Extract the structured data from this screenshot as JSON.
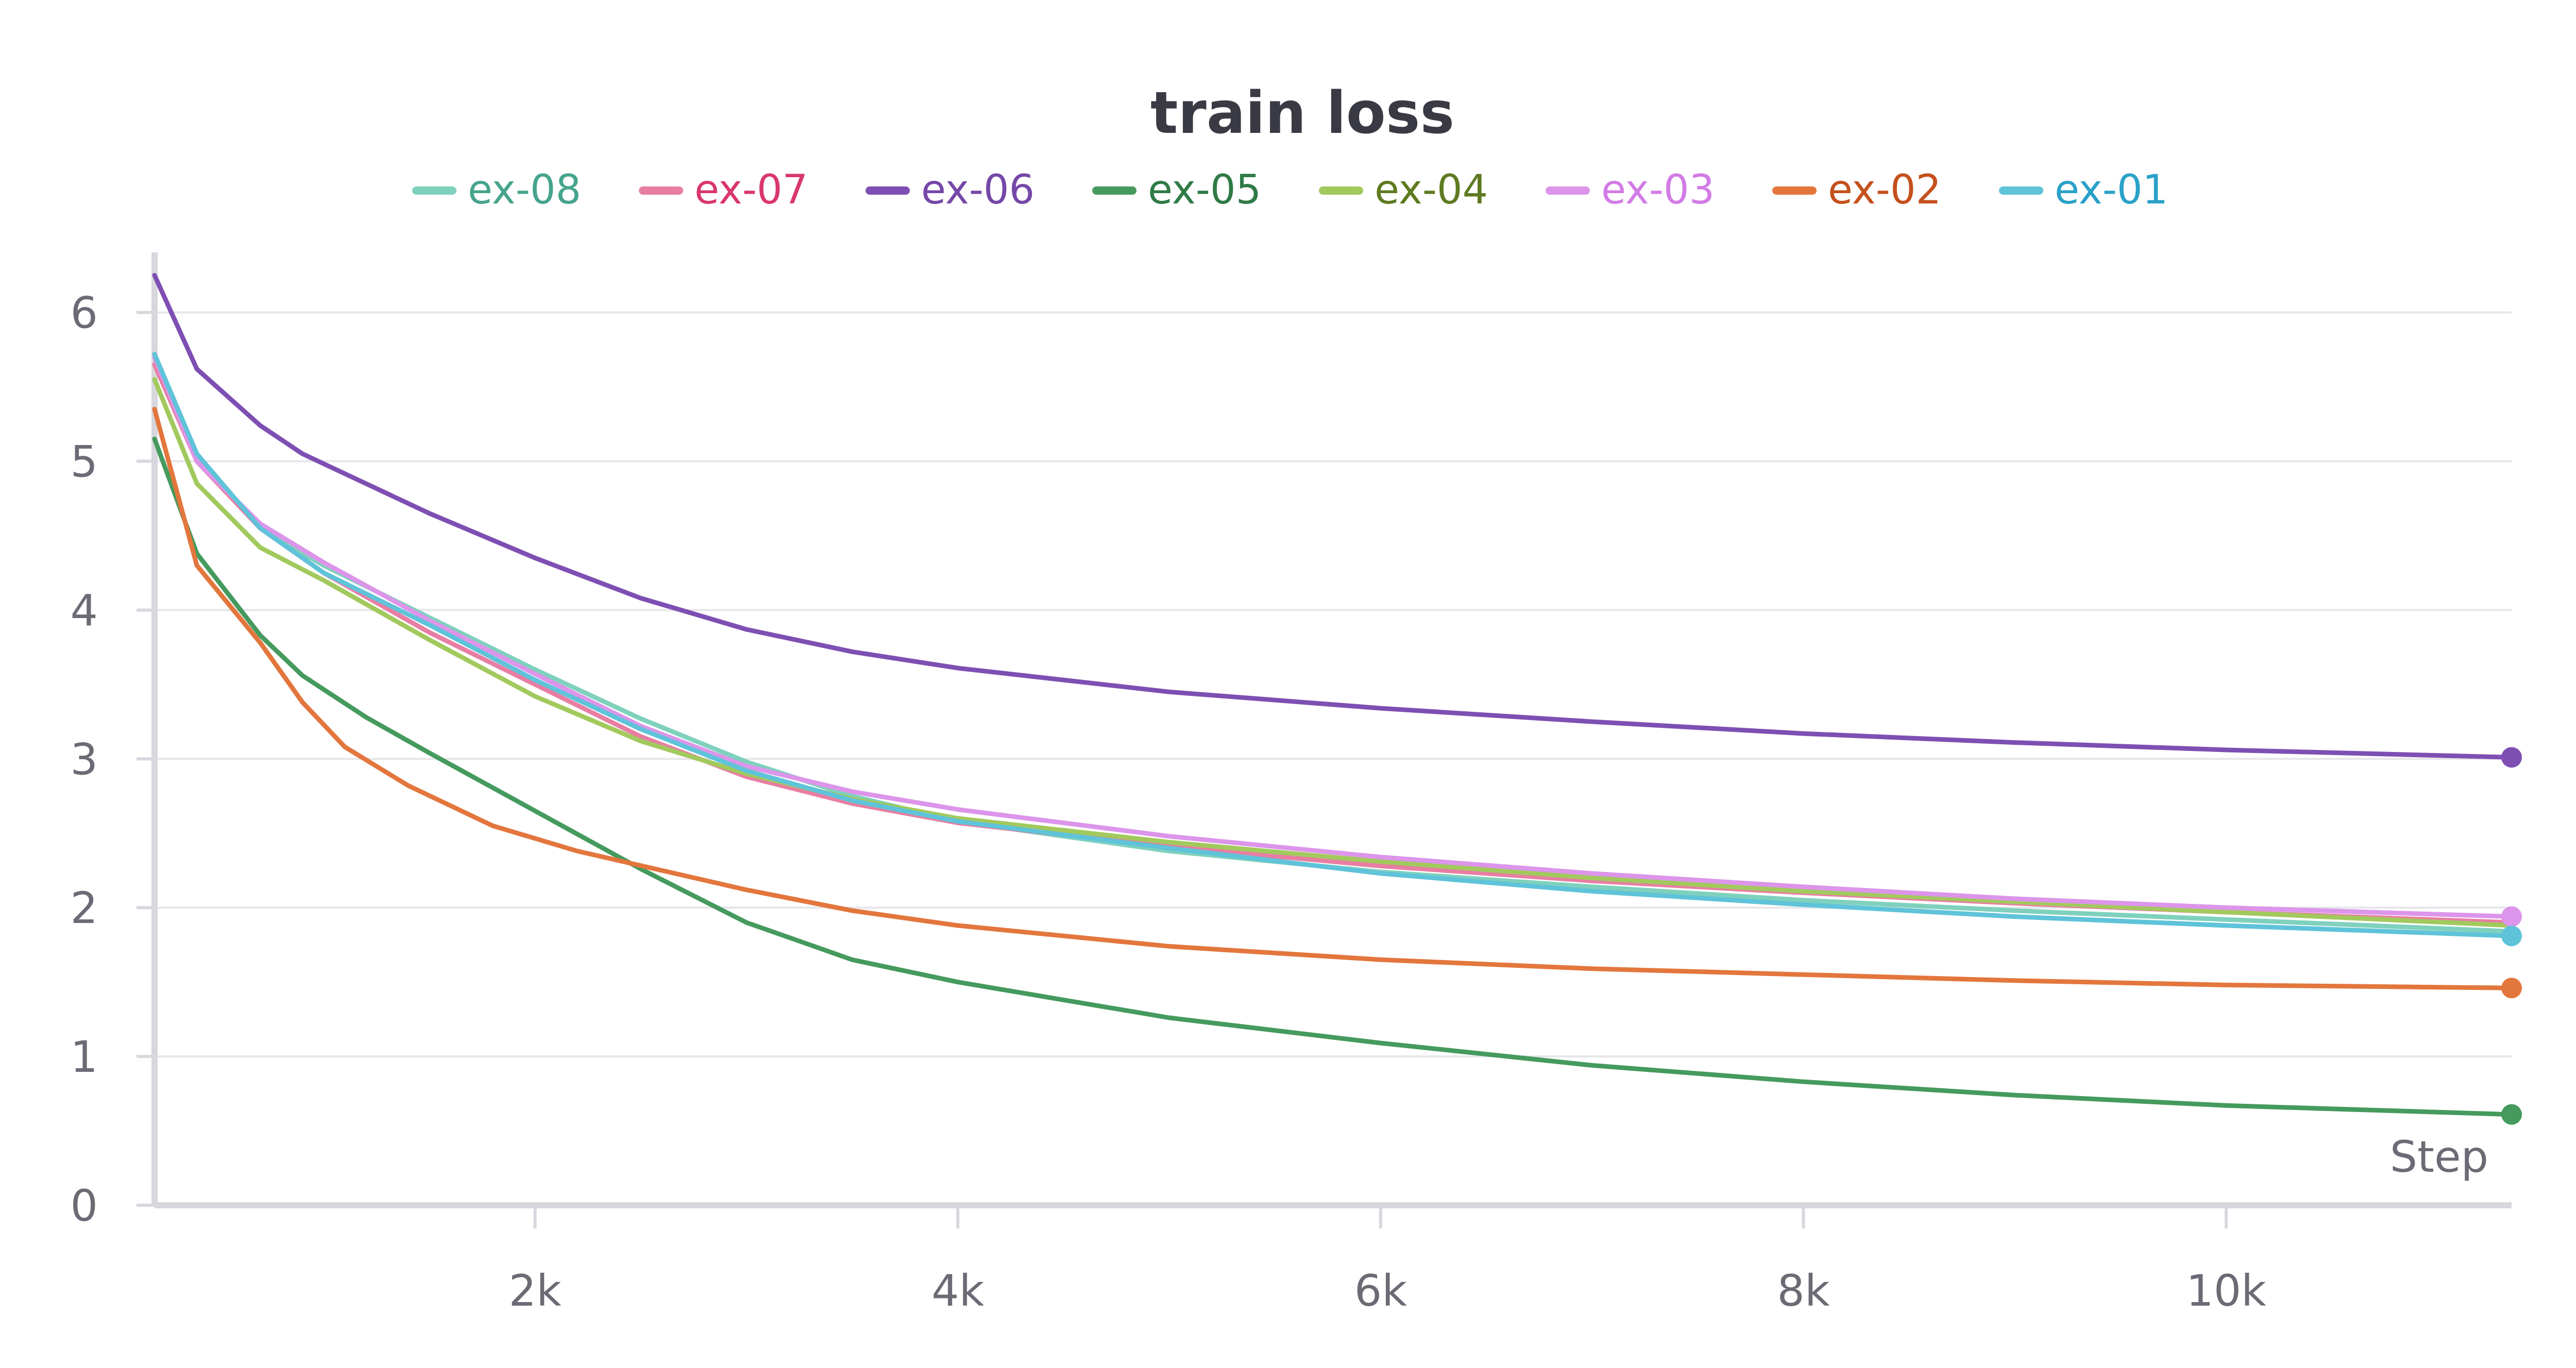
{
  "chart_data": {
    "type": "line",
    "title": "train loss",
    "xlabel": "Step",
    "ylabel": "",
    "xlim": [
      200,
      11350
    ],
    "ylim": [
      0,
      6.3
    ],
    "x_ticks": [
      {
        "value": 2000,
        "label": "2k"
      },
      {
        "value": 4000,
        "label": "4k"
      },
      {
        "value": 6000,
        "label": "6k"
      },
      {
        "value": 8000,
        "label": "8k"
      },
      {
        "value": 10000,
        "label": "10k"
      }
    ],
    "y_ticks": [
      {
        "value": 0,
        "label": "0"
      },
      {
        "value": 1,
        "label": "1"
      },
      {
        "value": 2,
        "label": "2"
      },
      {
        "value": 3,
        "label": "3"
      },
      {
        "value": 4,
        "label": "4"
      },
      {
        "value": 5,
        "label": "5"
      },
      {
        "value": 6,
        "label": "6"
      }
    ],
    "grid": true,
    "legend_position": "top",
    "series": [
      {
        "name": "ex-08",
        "color": "#7fd1bd",
        "label_color": "#46a48c",
        "endpoint": false,
        "x": [
          200,
          400,
          700,
          1000,
          1500,
          2000,
          2500,
          3000,
          3500,
          4000,
          5000,
          6000,
          7000,
          8000,
          9000,
          10000,
          11350
        ],
        "y": [
          5.7,
          5.0,
          4.55,
          4.3,
          3.95,
          3.6,
          3.27,
          2.98,
          2.75,
          2.58,
          2.38,
          2.24,
          2.14,
          2.05,
          1.98,
          1.92,
          1.84
        ]
      },
      {
        "name": "ex-07",
        "color": "#e87ea3",
        "label_color": "#d93670",
        "endpoint": false,
        "x": [
          200,
          400,
          700,
          1000,
          1500,
          2000,
          2500,
          3000,
          3500,
          4000,
          5000,
          6000,
          7000,
          8000,
          9000,
          10000,
          11350
        ],
        "y": [
          5.65,
          5.0,
          4.55,
          4.25,
          3.85,
          3.5,
          3.15,
          2.88,
          2.7,
          2.57,
          2.41,
          2.28,
          2.18,
          2.1,
          2.03,
          1.97,
          1.9
        ]
      },
      {
        "name": "ex-06",
        "color": "#7e4fb3",
        "label_color": "#7547a8",
        "endpoint": true,
        "x": [
          200,
          400,
          700,
          900,
          1200,
          1500,
          2000,
          2500,
          3000,
          3500,
          4000,
          5000,
          6000,
          7000,
          8000,
          9000,
          10000,
          11350
        ],
        "y": [
          6.25,
          5.62,
          5.24,
          5.05,
          4.85,
          4.65,
          4.35,
          4.08,
          3.87,
          3.72,
          3.61,
          3.45,
          3.34,
          3.25,
          3.17,
          3.11,
          3.06,
          3.01
        ]
      },
      {
        "name": "ex-05",
        "color": "#459a5d",
        "label_color": "#2f7a46",
        "endpoint": true,
        "x": [
          200,
          400,
          700,
          900,
          1200,
          1500,
          2000,
          2500,
          3000,
          3500,
          4000,
          5000,
          6000,
          7000,
          8000,
          9000,
          10000,
          11350
        ],
        "y": [
          5.15,
          4.38,
          3.83,
          3.56,
          3.28,
          3.04,
          2.65,
          2.26,
          1.9,
          1.65,
          1.5,
          1.26,
          1.09,
          0.94,
          0.83,
          0.74,
          0.67,
          0.61
        ]
      },
      {
        "name": "ex-04",
        "color": "#a2c95d",
        "label_color": "#5e7a20",
        "endpoint": false,
        "x": [
          200,
          400,
          700,
          1000,
          1500,
          2000,
          2500,
          3000,
          3500,
          4000,
          5000,
          6000,
          7000,
          8000,
          9000,
          10000,
          11350
        ],
        "y": [
          5.55,
          4.85,
          4.42,
          4.2,
          3.8,
          3.42,
          3.12,
          2.9,
          2.73,
          2.6,
          2.44,
          2.31,
          2.2,
          2.11,
          2.04,
          1.97,
          1.88
        ]
      },
      {
        "name": "ex-03",
        "color": "#dc95ea",
        "label_color": "#d27be6",
        "endpoint": true,
        "x": [
          200,
          400,
          700,
          1000,
          1500,
          2000,
          2500,
          3000,
          3500,
          4000,
          5000,
          6000,
          7000,
          8000,
          9000,
          10000,
          11350
        ],
        "y": [
          5.7,
          5.0,
          4.58,
          4.32,
          3.93,
          3.57,
          3.22,
          2.95,
          2.78,
          2.66,
          2.48,
          2.34,
          2.23,
          2.14,
          2.06,
          2.0,
          1.94
        ]
      },
      {
        "name": "ex-02",
        "color": "#e3763d",
        "label_color": "#c4501c",
        "endpoint": true,
        "x": [
          200,
          400,
          700,
          900,
          1100,
          1400,
          1800,
          2200,
          2600,
          3000,
          3500,
          4000,
          5000,
          6000,
          7000,
          8000,
          9000,
          10000,
          11350
        ],
        "y": [
          5.35,
          4.3,
          3.78,
          3.38,
          3.08,
          2.82,
          2.55,
          2.38,
          2.25,
          2.12,
          1.98,
          1.88,
          1.74,
          1.65,
          1.59,
          1.55,
          1.51,
          1.48,
          1.46
        ]
      },
      {
        "name": "ex-01",
        "color": "#5fc3d9",
        "label_color": "#2aa1c8",
        "endpoint": true,
        "x": [
          200,
          400,
          700,
          1000,
          1500,
          2000,
          2500,
          3000,
          3500,
          4000,
          5000,
          6000,
          7000,
          8000,
          9000,
          10000,
          11350
        ],
        "y": [
          5.72,
          5.05,
          4.55,
          4.25,
          3.9,
          3.53,
          3.2,
          2.92,
          2.72,
          2.58,
          2.4,
          2.23,
          2.11,
          2.02,
          1.94,
          1.88,
          1.81
        ]
      }
    ]
  },
  "colors": {
    "grid": "#e6e6ea",
    "axis": "#d7d7dd",
    "tick_text": "#6b6b76",
    "title_text": "#3a3a44"
  }
}
